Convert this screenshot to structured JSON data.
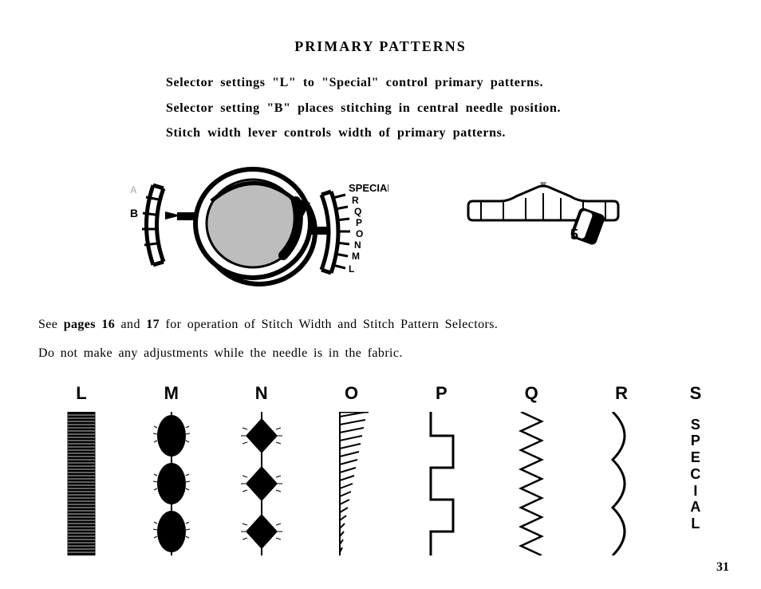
{
  "title": "PRIMARY  PATTERNS",
  "intro": {
    "line1": "Selector settings \"L\" to \"Special\" control primary patterns.",
    "line2": "Selector setting \"B\" places stitching in central needle position.",
    "line3": "Stitch width lever controls width of primary patterns."
  },
  "dial": {
    "labels": {
      "special": "SPECIAL",
      "r": "R",
      "q": "Q",
      "p": "P",
      "o": "O",
      "n": "N",
      "m": "M",
      "l": "L",
      "a": "A",
      "b": "B"
    },
    "colors": {
      "stroke": "#000000",
      "shade": "#aaaaaa",
      "bg": "#ffffff"
    }
  },
  "scale": {
    "label5": "5",
    "colors": {
      "stroke": "#000000",
      "fill_light": "#ffffff"
    }
  },
  "body": {
    "line1_a": "See ",
    "line1_bold": "pages 16",
    "line1_b": " and ",
    "line1_bold2": "17",
    "line1_c": " for operation of Stitch Width and Stitch Pattern Selectors.",
    "line2": "Do not make any adjustments while the needle is in the fabric."
  },
  "patterns": {
    "labels": {
      "l": "L",
      "m": "M",
      "n": "N",
      "o": "O",
      "p": "P",
      "q": "Q",
      "r": "R",
      "s": "S"
    },
    "special_vertical": "SPECIAL",
    "stroke": "#000000"
  },
  "page_number": "31"
}
